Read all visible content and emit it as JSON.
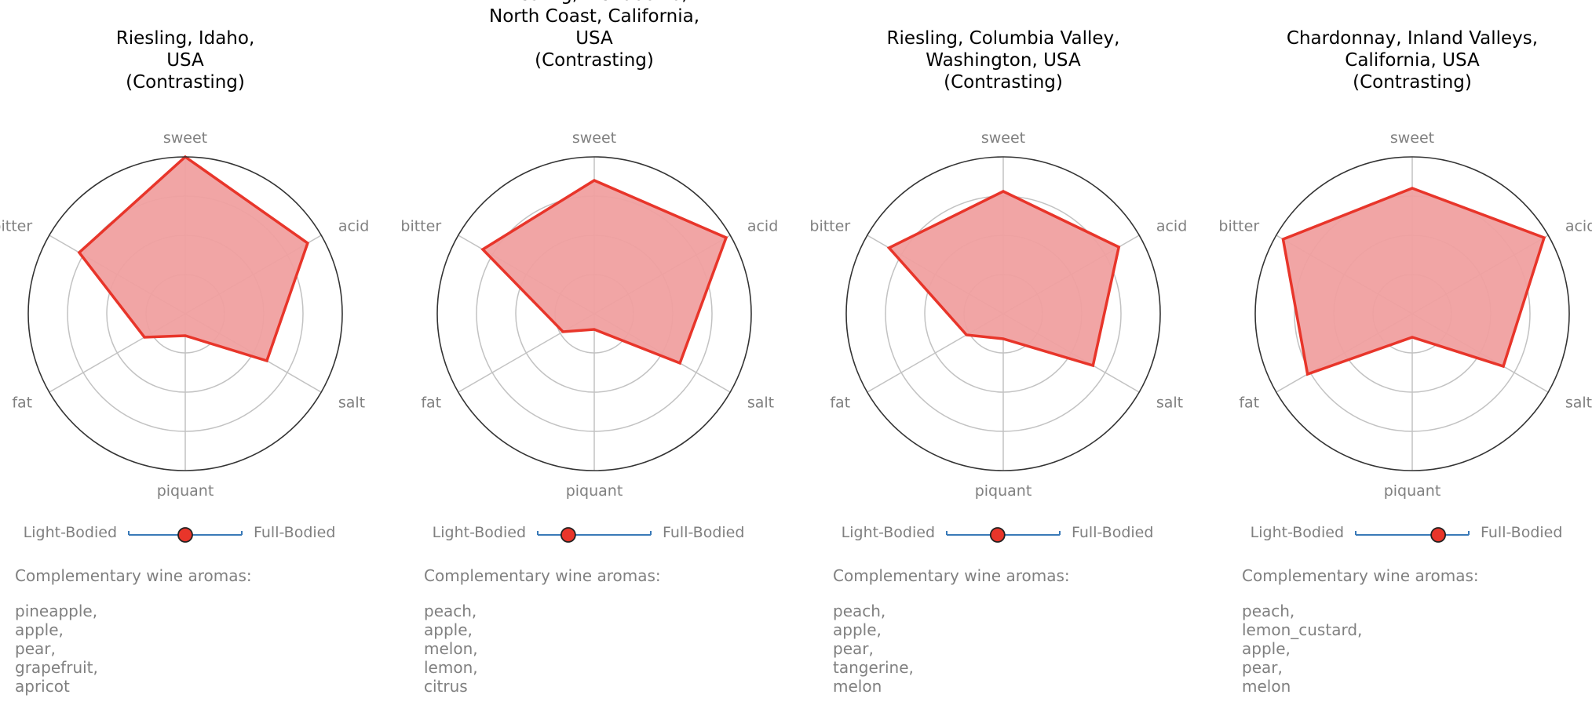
{
  "axes": [
    "sweet",
    "acid",
    "salt",
    "piquant",
    "fat",
    "bitter"
  ],
  "body_scale": {
    "left_label": "Light-Bodied",
    "right_label": "Full-Bodied"
  },
  "aromas_heading": "Complementary wine aromas:",
  "colors": {
    "fill": "#f0a0a0",
    "stroke": "#e8352a",
    "outer_ring": "#333333",
    "grid": "#c2c2c2",
    "axis_label": "#808080",
    "title": "#000000",
    "slider_line": "#3a7ab8",
    "slider_marker": "#e8352a"
  },
  "chart_data": [
    {
      "type": "radar",
      "title_lines": [
        "Riesling, Idaho,",
        "USA",
        "(Contrasting)"
      ],
      "values": {
        "sweet": 1.0,
        "acid": 0.9,
        "salt": 0.6,
        "piquant": 0.14,
        "fat": 0.3,
        "bitter": 0.78
      },
      "body": 0.5,
      "aromas": [
        "pineapple,",
        "apple,",
        "pear,",
        "grapefruit,",
        "apricot"
      ]
    },
    {
      "type": "radar",
      "title_lines": [
        "Riesling, Mendocino,",
        "North Coast, California,",
        "USA",
        "(Contrasting)"
      ],
      "values": {
        "sweet": 0.85,
        "acid": 0.97,
        "salt": 0.63,
        "piquant": 0.1,
        "fat": 0.23,
        "bitter": 0.82
      },
      "body": 0.27,
      "aromas": [
        "peach,",
        "apple,",
        "melon,",
        "lemon,",
        "citrus"
      ]
    },
    {
      "type": "radar",
      "title_lines": [
        "Riesling, Columbia Valley,",
        "Washington, USA",
        "(Contrasting)"
      ],
      "values": {
        "sweet": 0.78,
        "acid": 0.85,
        "salt": 0.66,
        "piquant": 0.16,
        "fat": 0.27,
        "bitter": 0.84
      },
      "body": 0.45,
      "aromas": [
        "peach,",
        "apple,",
        "pear,",
        "tangerine,",
        "melon"
      ]
    },
    {
      "type": "radar",
      "title_lines": [
        "Chardonnay, Inland Valleys,",
        "California, USA",
        "(Contrasting)"
      ],
      "values": {
        "sweet": 0.8,
        "acid": 0.97,
        "salt": 0.67,
        "piquant": 0.15,
        "fat": 0.77,
        "bitter": 0.95
      },
      "body": 0.73,
      "aromas": [
        "peach,",
        "lemon_custard,",
        "apple,",
        "pear,",
        "melon"
      ]
    }
  ]
}
